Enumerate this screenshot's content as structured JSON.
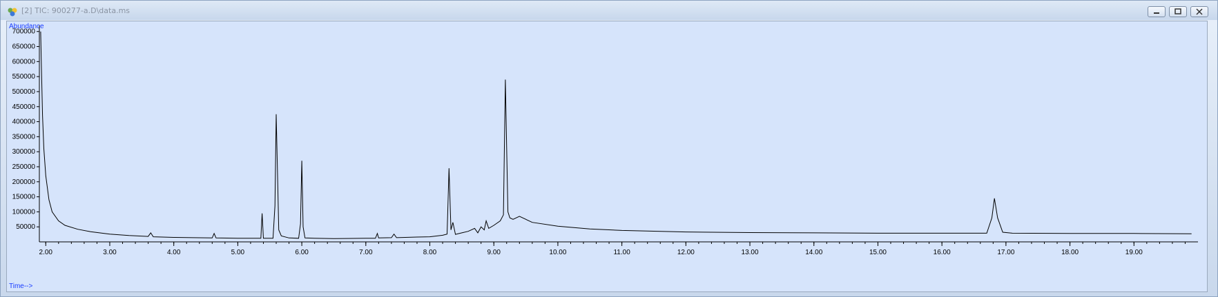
{
  "window": {
    "title": "[2] TIC: 900277-a.D\\data.ms",
    "buttons": [
      "minimize",
      "restore",
      "close"
    ]
  },
  "colors": {
    "plot_background": "#d6e4fb",
    "trace": "#000000",
    "axis_label": "#1a3cff"
  },
  "chart_data": {
    "type": "line",
    "ylabel": "Abundance",
    "xlabel": "Time-->",
    "xlim": [
      1.9,
      20.0
    ],
    "ylim": [
      0,
      720000
    ],
    "x_ticks": [
      2.0,
      3.0,
      4.0,
      5.0,
      6.0,
      7.0,
      8.0,
      9.0,
      10.0,
      11.0,
      12.0,
      13.0,
      14.0,
      15.0,
      16.0,
      17.0,
      18.0,
      19.0
    ],
    "x_tick_labels": [
      "2.00",
      "3.00",
      "4.00",
      "5.00",
      "6.00",
      "7.00",
      "8.00",
      "9.00",
      "10.00",
      "11.00",
      "12.00",
      "13.00",
      "14.00",
      "15.00",
      "16.00",
      "17.00",
      "18.00",
      "19.00"
    ],
    "y_ticks": [
      50000,
      100000,
      150000,
      200000,
      250000,
      300000,
      350000,
      400000,
      450000,
      500000,
      550000,
      600000,
      650000,
      700000
    ],
    "y_tick_labels": [
      "50000",
      "100000",
      "150000",
      "200000",
      "250000",
      "300000",
      "350000",
      "400000",
      "450000",
      "500000",
      "550000",
      "600000",
      "650000",
      "700000"
    ],
    "series": [
      {
        "x": [
          1.92,
          1.93,
          1.95,
          1.97,
          2.0,
          2.05,
          2.1,
          2.2,
          2.3,
          2.5,
          2.7,
          3.0,
          3.3,
          3.6,
          3.64,
          3.68,
          4.0,
          4.3,
          4.6,
          4.63,
          4.66,
          5.0,
          5.3,
          5.36,
          5.38,
          5.4,
          5.44,
          5.55,
          5.58,
          5.6,
          5.62,
          5.64,
          5.68,
          5.8,
          5.95,
          5.98,
          6.0,
          6.02,
          6.05,
          6.2,
          6.5,
          7.0,
          7.15,
          7.18,
          7.2,
          7.4,
          7.44,
          7.48,
          7.8,
          8.0,
          8.2,
          8.27,
          8.3,
          8.33,
          8.36,
          8.4,
          8.5,
          8.6,
          8.7,
          8.75,
          8.8,
          8.85,
          8.88,
          8.92,
          9.0,
          9.1,
          9.15,
          9.18,
          9.2,
          9.22,
          9.25,
          9.3,
          9.4,
          9.6,
          10.0,
          10.5,
          11.0,
          12.0,
          13.0,
          14.0,
          15.0,
          16.0,
          16.7,
          16.78,
          16.82,
          16.87,
          16.95,
          17.1,
          18.0,
          19.0,
          19.9
        ],
        "y": [
          700000,
          600000,
          420000,
          310000,
          220000,
          140000,
          100000,
          70000,
          55000,
          42000,
          34000,
          26000,
          21000,
          18000,
          30000,
          17000,
          15000,
          14000,
          13000,
          28000,
          13000,
          12000,
          12000,
          12000,
          95000,
          12000,
          12000,
          12000,
          120000,
          425000,
          230000,
          40000,
          20000,
          13000,
          12000,
          60000,
          270000,
          50000,
          13000,
          12000,
          11000,
          12000,
          12000,
          28000,
          13000,
          14000,
          26000,
          14000,
          16000,
          17000,
          22000,
          26000,
          245000,
          40000,
          65000,
          25000,
          30000,
          35000,
          45000,
          30000,
          50000,
          40000,
          70000,
          45000,
          55000,
          70000,
          90000,
          540000,
          310000,
          100000,
          80000,
          75000,
          85000,
          65000,
          52000,
          43000,
          38000,
          33000,
          31000,
          30000,
          29000,
          29000,
          29000,
          80000,
          145000,
          80000,
          32000,
          29000,
          28000,
          28000,
          27000
        ]
      }
    ]
  }
}
